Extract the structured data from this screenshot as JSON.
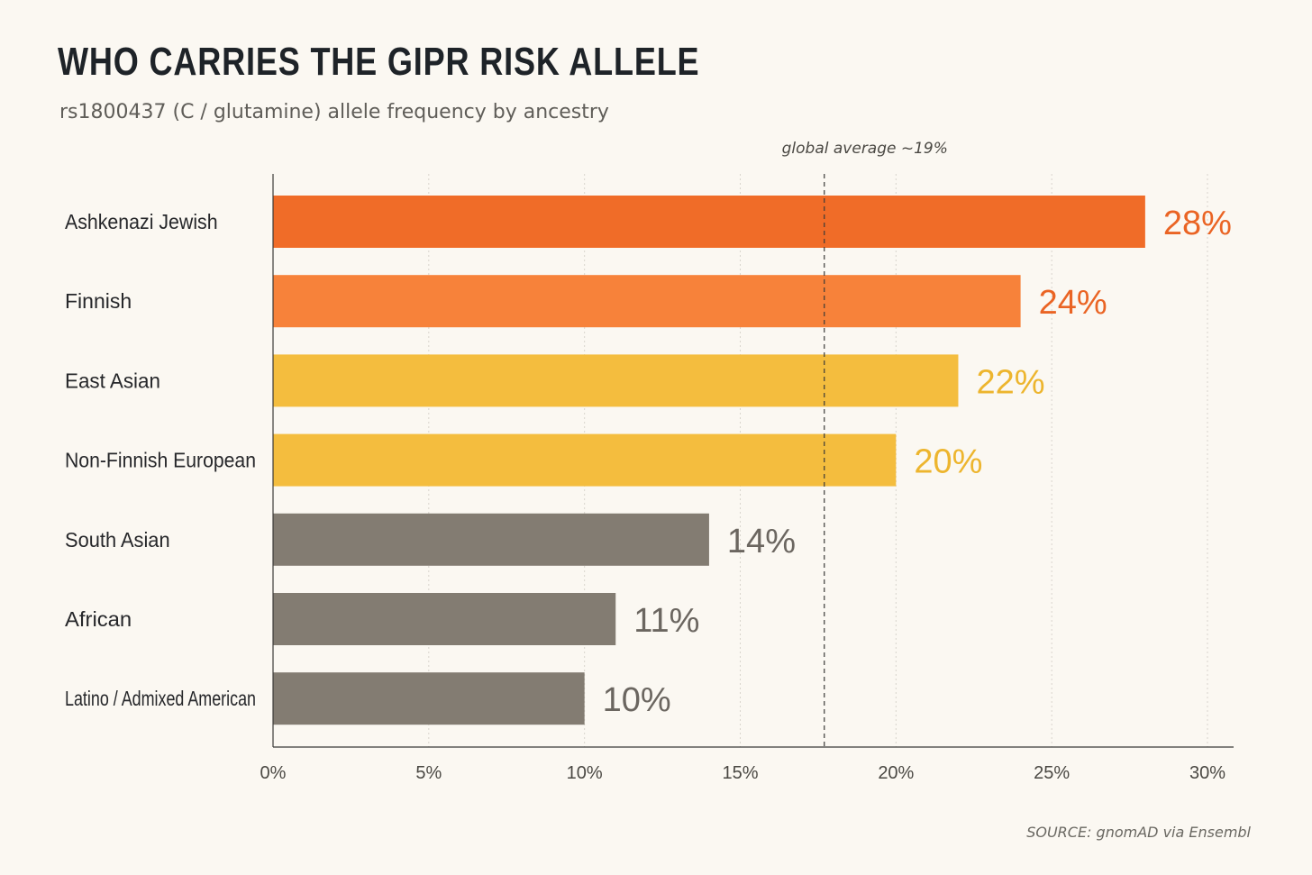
{
  "chart_data": {
    "type": "bar",
    "orientation": "horizontal",
    "title": "WHO CARRIES THE GIPR RISK ALLELE",
    "subtitle": "rs1800437 (C / glutamine) allele frequency by ancestry",
    "categories": [
      "Ashkenazi Jewish",
      "Finnish",
      "East Asian",
      "Non-Finnish European",
      "South Asian",
      "African",
      "Latino / Admixed American"
    ],
    "values": [
      28,
      24,
      22,
      20,
      14,
      11,
      10
    ],
    "value_labels": [
      "28%",
      "24%",
      "22%",
      "20%",
      "14%",
      "11%",
      "10%"
    ],
    "bar_colors": [
      "#f06c28",
      "#f7823a",
      "#f4bd3e",
      "#f4bd3e",
      "#837c72",
      "#837c72",
      "#837c72"
    ],
    "label_colors": [
      "#ea6424",
      "#ea6424",
      "#edb52e",
      "#edb52e",
      "#6b6660",
      "#6b6660",
      "#6b6660"
    ],
    "xlim": [
      0,
      30
    ],
    "xticks": [
      0,
      5,
      10,
      15,
      20,
      25,
      30
    ],
    "xtick_labels": [
      "0%",
      "5%",
      "10%",
      "15%",
      "20%",
      "25%",
      "30%"
    ],
    "reference_line": {
      "value": 19,
      "label": "global average ~19%"
    },
    "grid": "vertical dotted",
    "source": "SOURCE: gnomAD via Ensembl"
  }
}
